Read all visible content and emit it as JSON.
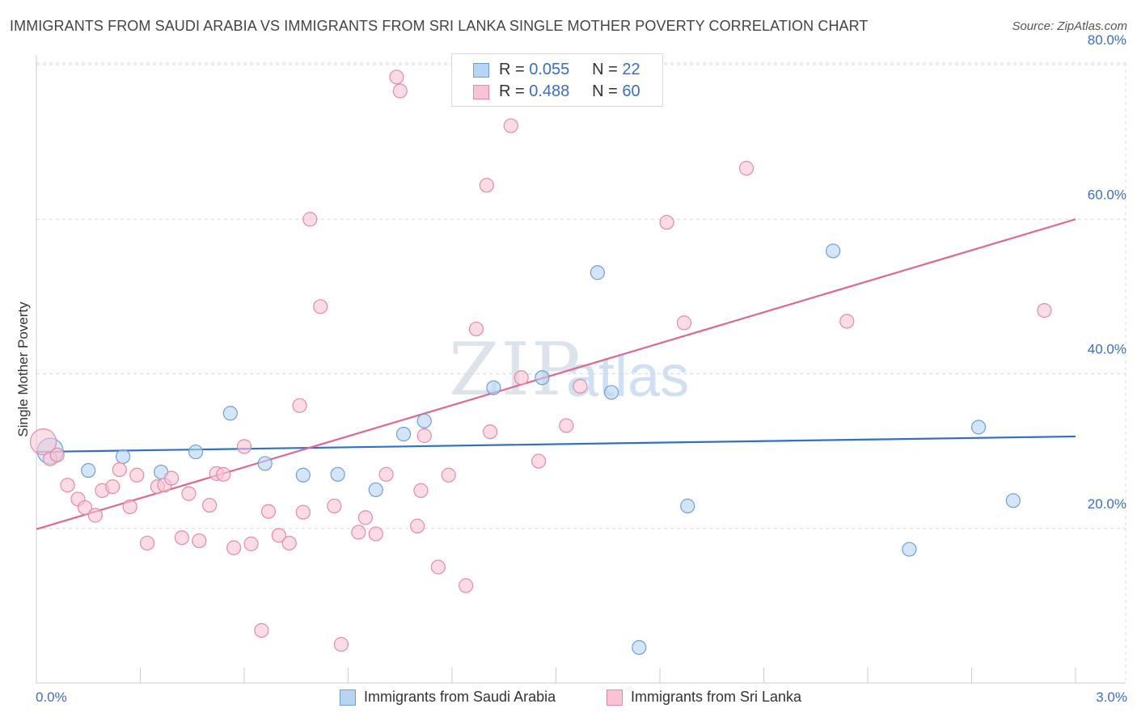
{
  "header": {
    "title": "IMMIGRANTS FROM SAUDI ARABIA VS IMMIGRANTS FROM SRI LANKA SINGLE MOTHER POVERTY CORRELATION CHART",
    "source": "Source: ZipAtlas.com"
  },
  "watermark": {
    "zip": "ZIP",
    "atlas": "atlas"
  },
  "legend_top": {
    "rows": [
      {
        "r_label": "R =",
        "r_value": "0.055",
        "n_label": "N =",
        "n_value": "22"
      },
      {
        "r_label": "R =",
        "r_value": "0.488",
        "n_label": "N =",
        "n_value": "60"
      }
    ]
  },
  "legend_bottom": {
    "items": [
      {
        "label": "Immigrants from Saudi Arabia"
      },
      {
        "label": "Immigrants from Sri Lanka"
      }
    ]
  },
  "colors": {
    "blue_fill": "#b9d3f3",
    "blue_stroke": "#6f9fd8",
    "blue_line": "#2f70c9",
    "pink_fill": "#f8c4d4",
    "pink_stroke": "#e48aa8",
    "pink_line": "#e0678f",
    "grid": "#d8d8d8",
    "axis_text": "#3a6fc4"
  },
  "chart_data": {
    "type": "scatter",
    "title": "IMMIGRANTS FROM SAUDI ARABIA VS IMMIGRANTS FROM SRI LANKA SINGLE MOTHER POVERTY CORRELATION CHART",
    "xlabel": "",
    "ylabel": "Single Mother Poverty",
    "xlim": [
      0,
      3.0
    ],
    "ylim": [
      0,
      80
    ],
    "x_tick_labels": [
      "0.0%",
      "3.0%"
    ],
    "y_ticks": [
      20,
      40,
      60,
      80
    ],
    "y_tick_labels": [
      "20.0%",
      "40.0%",
      "60.0%",
      "80.0%"
    ],
    "series": [
      {
        "name": "Immigrants from Saudi Arabia",
        "color": "blue",
        "R": 0.055,
        "N": 22,
        "trend": {
          "x": [
            0.0,
            3.0
          ],
          "y": [
            29.9,
            31.9
          ]
        },
        "points": [
          {
            "x": 0.04,
            "y": 30.0,
            "big": true
          },
          {
            "x": 0.15,
            "y": 27.5
          },
          {
            "x": 0.25,
            "y": 29.3
          },
          {
            "x": 0.36,
            "y": 27.3
          },
          {
            "x": 0.46,
            "y": 29.9
          },
          {
            "x": 0.56,
            "y": 34.9
          },
          {
            "x": 0.66,
            "y": 28.4
          },
          {
            "x": 0.77,
            "y": 26.9
          },
          {
            "x": 0.87,
            "y": 27.0
          },
          {
            "x": 0.98,
            "y": 25.0
          },
          {
            "x": 1.06,
            "y": 32.2
          },
          {
            "x": 1.12,
            "y": 33.9
          },
          {
            "x": 1.32,
            "y": 38.2
          },
          {
            "x": 1.46,
            "y": 39.5
          },
          {
            "x": 1.62,
            "y": 53.1
          },
          {
            "x": 1.66,
            "y": 37.6
          },
          {
            "x": 1.74,
            "y": 4.6
          },
          {
            "x": 1.88,
            "y": 22.9
          },
          {
            "x": 2.3,
            "y": 55.9
          },
          {
            "x": 2.52,
            "y": 17.3
          },
          {
            "x": 2.72,
            "y": 33.1
          },
          {
            "x": 2.82,
            "y": 23.6
          }
        ]
      },
      {
        "name": "Immigrants from Sri Lanka",
        "color": "pink",
        "R": 0.488,
        "N": 60,
        "trend": {
          "x": [
            0.0,
            3.0
          ],
          "y": [
            19.9,
            60.0
          ]
        },
        "points": [
          {
            "x": 0.02,
            "y": 31.2,
            "big": true
          },
          {
            "x": 0.04,
            "y": 29.0
          },
          {
            "x": 0.06,
            "y": 29.5
          },
          {
            "x": 0.09,
            "y": 25.6
          },
          {
            "x": 0.12,
            "y": 23.8
          },
          {
            "x": 0.14,
            "y": 22.7
          },
          {
            "x": 0.17,
            "y": 21.7
          },
          {
            "x": 0.19,
            "y": 24.9
          },
          {
            "x": 0.22,
            "y": 25.4
          },
          {
            "x": 0.24,
            "y": 27.6
          },
          {
            "x": 0.27,
            "y": 22.8
          },
          {
            "x": 0.29,
            "y": 26.9
          },
          {
            "x": 0.32,
            "y": 18.1
          },
          {
            "x": 0.35,
            "y": 25.4
          },
          {
            "x": 0.37,
            "y": 25.6
          },
          {
            "x": 0.39,
            "y": 26.5
          },
          {
            "x": 0.42,
            "y": 18.8
          },
          {
            "x": 0.44,
            "y": 24.5
          },
          {
            "x": 0.47,
            "y": 18.4
          },
          {
            "x": 0.5,
            "y": 23.0
          },
          {
            "x": 0.52,
            "y": 27.1
          },
          {
            "x": 0.54,
            "y": 27.0
          },
          {
            "x": 0.57,
            "y": 17.5
          },
          {
            "x": 0.6,
            "y": 30.6
          },
          {
            "x": 0.62,
            "y": 18.0
          },
          {
            "x": 0.65,
            "y": 6.8
          },
          {
            "x": 0.67,
            "y": 22.2
          },
          {
            "x": 0.7,
            "y": 19.1
          },
          {
            "x": 0.73,
            "y": 18.1
          },
          {
            "x": 0.76,
            "y": 35.9
          },
          {
            "x": 0.77,
            "y": 22.1
          },
          {
            "x": 0.79,
            "y": 60.0
          },
          {
            "x": 0.82,
            "y": 48.7
          },
          {
            "x": 0.86,
            "y": 22.9
          },
          {
            "x": 0.88,
            "y": 5.0
          },
          {
            "x": 0.93,
            "y": 19.5
          },
          {
            "x": 0.95,
            "y": 21.4
          },
          {
            "x": 0.98,
            "y": 19.3
          },
          {
            "x": 1.01,
            "y": 27.0
          },
          {
            "x": 1.04,
            "y": 78.4
          },
          {
            "x": 1.05,
            "y": 76.6
          },
          {
            "x": 1.1,
            "y": 20.3
          },
          {
            "x": 1.11,
            "y": 24.9
          },
          {
            "x": 1.12,
            "y": 32.0
          },
          {
            "x": 1.16,
            "y": 15.0
          },
          {
            "x": 1.19,
            "y": 26.9
          },
          {
            "x": 1.24,
            "y": 12.6
          },
          {
            "x": 1.27,
            "y": 45.8
          },
          {
            "x": 1.3,
            "y": 64.4
          },
          {
            "x": 1.31,
            "y": 32.5
          },
          {
            "x": 1.37,
            "y": 72.1
          },
          {
            "x": 1.4,
            "y": 39.5
          },
          {
            "x": 1.45,
            "y": 28.7
          },
          {
            "x": 1.53,
            "y": 33.3
          },
          {
            "x": 1.57,
            "y": 38.4
          },
          {
            "x": 1.82,
            "y": 59.6
          },
          {
            "x": 1.87,
            "y": 46.6
          },
          {
            "x": 2.05,
            "y": 66.6
          },
          {
            "x": 2.34,
            "y": 46.8
          },
          {
            "x": 2.91,
            "y": 48.2
          }
        ]
      }
    ]
  }
}
